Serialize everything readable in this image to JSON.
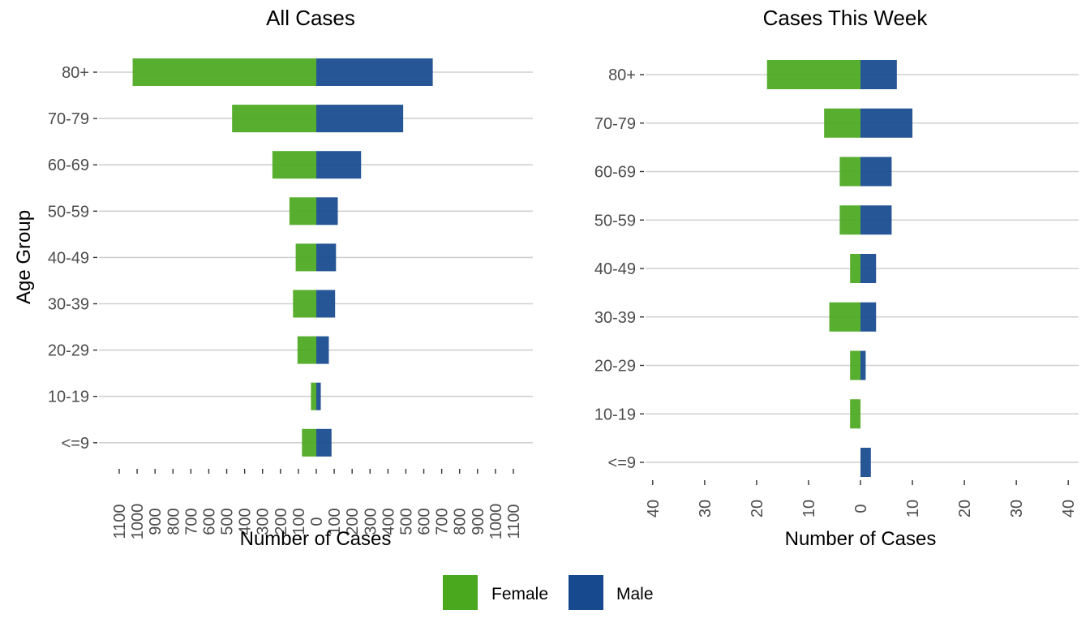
{
  "chart_data": [
    {
      "type": "bar",
      "orientation": "horizontal",
      "layout": "population-pyramid",
      "title": "All Cases",
      "xlabel": "Number of Cases",
      "ylabel": "Age Group",
      "categories": [
        "<=9",
        "10-19",
        "20-29",
        "30-39",
        "40-49",
        "50-59",
        "60-69",
        "70-79",
        "80+"
      ],
      "series": [
        {
          "name": "Female",
          "color": "#4aa81f",
          "values": [
            80,
            30,
            105,
            130,
            115,
            150,
            245,
            470,
            1025
          ],
          "side": "left"
        },
        {
          "name": "Male",
          "color": "#17498e",
          "values": [
            85,
            25,
            70,
            105,
            110,
            120,
            250,
            485,
            650
          ],
          "side": "right"
        }
      ],
      "xlim": [
        -1100,
        1100
      ],
      "x_ticks": [
        -1100,
        -1000,
        -900,
        -800,
        -700,
        -600,
        -500,
        -400,
        -300,
        -200,
        -100,
        0,
        100,
        200,
        300,
        400,
        500,
        600,
        700,
        800,
        900,
        1000,
        1100
      ],
      "x_tick_labels": [
        "1100",
        "1000",
        "900",
        "800",
        "700",
        "600",
        "500",
        "400",
        "300",
        "200",
        "100",
        "0",
        "100",
        "200",
        "300",
        "400",
        "500",
        "600",
        "700",
        "800",
        "900",
        "1000",
        "1100"
      ],
      "grid": "horizontal"
    },
    {
      "type": "bar",
      "orientation": "horizontal",
      "layout": "population-pyramid",
      "title": "Cases This Week",
      "xlabel": "Number of Cases",
      "ylabel": "",
      "categories": [
        "<=9",
        "10-19",
        "20-29",
        "30-39",
        "40-49",
        "50-59",
        "60-69",
        "70-79",
        "80+"
      ],
      "series": [
        {
          "name": "Female",
          "color": "#4aa81f",
          "values": [
            0,
            2,
            2,
            6,
            2,
            4,
            4,
            7,
            18
          ],
          "side": "left"
        },
        {
          "name": "Male",
          "color": "#17498e",
          "values": [
            2,
            0,
            1,
            3,
            3,
            6,
            6,
            10,
            7
          ],
          "side": "right"
        }
      ],
      "xlim": [
        -42,
        42
      ],
      "x_ticks": [
        -40,
        -30,
        -20,
        -10,
        0,
        10,
        20,
        30,
        40
      ],
      "x_tick_labels": [
        "40",
        "30",
        "20",
        "10",
        "0",
        "10",
        "20",
        "30",
        "40"
      ],
      "grid": "horizontal"
    }
  ],
  "legend": {
    "position": "bottom",
    "items": [
      {
        "label": "Female",
        "color": "#4aa81f"
      },
      {
        "label": "Male",
        "color": "#17498e"
      }
    ]
  }
}
